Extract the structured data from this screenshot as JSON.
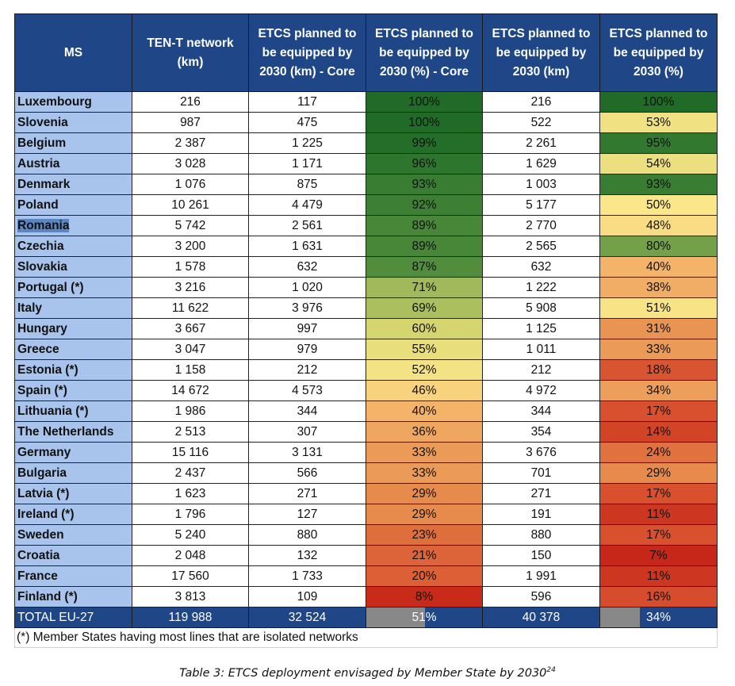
{
  "table": {
    "headers": [
      "MS",
      "TEN-T network (km)",
      "ETCS planned to be equipped by 2030 (km) - Core",
      "ETCS planned to be equipped by 2030 (%) - Core",
      "ETCS planned to be equipped by 2030 (km)",
      "ETCS planned to be equipped by 2030 (%)"
    ],
    "rows": [
      {
        "ms": "Luxembourg",
        "tent": "216",
        "core_km": "117",
        "core_pct": "100%",
        "core_pct_val": 100,
        "total_km": "216",
        "total_pct": "100%",
        "total_pct_val": 100
      },
      {
        "ms": "Slovenia",
        "tent": "987",
        "core_km": "475",
        "core_pct": "100%",
        "core_pct_val": 100,
        "total_km": "522",
        "total_pct": "53%",
        "total_pct_val": 53
      },
      {
        "ms": "Belgium",
        "tent": "2 387",
        "core_km": "1 225",
        "core_pct": "99%",
        "core_pct_val": 99,
        "total_km": "2 261",
        "total_pct": "95%",
        "total_pct_val": 95
      },
      {
        "ms": "Austria",
        "tent": "3 028",
        "core_km": "1 171",
        "core_pct": "96%",
        "core_pct_val": 96,
        "total_km": "1 629",
        "total_pct": "54%",
        "total_pct_val": 54
      },
      {
        "ms": "Denmark",
        "tent": "1 076",
        "core_km": "875",
        "core_pct": "93%",
        "core_pct_val": 93,
        "total_km": "1 003",
        "total_pct": "93%",
        "total_pct_val": 93
      },
      {
        "ms": "Poland",
        "tent": "10 261",
        "core_km": "4 479",
        "core_pct": "92%",
        "core_pct_val": 92,
        "total_km": "5 177",
        "total_pct": "50%",
        "total_pct_val": 50
      },
      {
        "ms": "Romania",
        "tent": "5 742",
        "core_km": "2 561",
        "core_pct": "89%",
        "core_pct_val": 89,
        "total_km": "2 770",
        "total_pct": "48%",
        "total_pct_val": 48,
        "selected": true
      },
      {
        "ms": "Czechia",
        "tent": "3 200",
        "core_km": "1 631",
        "core_pct": "89%",
        "core_pct_val": 89,
        "total_km": "2 565",
        "total_pct": "80%",
        "total_pct_val": 80
      },
      {
        "ms": "Slovakia",
        "tent": "1 578",
        "core_km": "632",
        "core_pct": "87%",
        "core_pct_val": 87,
        "total_km": "632",
        "total_pct": "40%",
        "total_pct_val": 40
      },
      {
        "ms": "Portugal (*)",
        "tent": "3 216",
        "core_km": "1 020",
        "core_pct": "71%",
        "core_pct_val": 71,
        "total_km": "1 222",
        "total_pct": "38%",
        "total_pct_val": 38
      },
      {
        "ms": "Italy",
        "tent": "11 622",
        "core_km": "3 976",
        "core_pct": "69%",
        "core_pct_val": 69,
        "total_km": "5 908",
        "total_pct": "51%",
        "total_pct_val": 51
      },
      {
        "ms": "Hungary",
        "tent": "3 667",
        "core_km": "997",
        "core_pct": "60%",
        "core_pct_val": 60,
        "total_km": "1 125",
        "total_pct": "31%",
        "total_pct_val": 31
      },
      {
        "ms": "Greece",
        "tent": "3 047",
        "core_km": "979",
        "core_pct": "55%",
        "core_pct_val": 55,
        "total_km": "1 011",
        "total_pct": "33%",
        "total_pct_val": 33
      },
      {
        "ms": "Estonia (*)",
        "tent": "1 158",
        "core_km": "212",
        "core_pct": "52%",
        "core_pct_val": 52,
        "total_km": "212",
        "total_pct": "18%",
        "total_pct_val": 18
      },
      {
        "ms": "Spain (*)",
        "tent": "14 672",
        "core_km": "4 573",
        "core_pct": "46%",
        "core_pct_val": 46,
        "total_km": "4 972",
        "total_pct": "34%",
        "total_pct_val": 34
      },
      {
        "ms": "Lithuania (*)",
        "tent": "1 986",
        "core_km": "344",
        "core_pct": "40%",
        "core_pct_val": 40,
        "total_km": "344",
        "total_pct": "17%",
        "total_pct_val": 17
      },
      {
        "ms": "The Netherlands",
        "tent": "2 513",
        "core_km": "307",
        "core_pct": "36%",
        "core_pct_val": 36,
        "total_km": "354",
        "total_pct": "14%",
        "total_pct_val": 14
      },
      {
        "ms": "Germany",
        "tent": "15 116",
        "core_km": "3 131",
        "core_pct": "33%",
        "core_pct_val": 33,
        "total_km": "3 676",
        "total_pct": "24%",
        "total_pct_val": 24
      },
      {
        "ms": "Bulgaria",
        "tent": "2 437",
        "core_km": "566",
        "core_pct": "33%",
        "core_pct_val": 33,
        "total_km": "701",
        "total_pct": "29%",
        "total_pct_val": 29
      },
      {
        "ms": "Latvia (*)",
        "tent": "1 623",
        "core_km": "271",
        "core_pct": "29%",
        "core_pct_val": 29,
        "total_km": "271",
        "total_pct": "17%",
        "total_pct_val": 17
      },
      {
        "ms": "Ireland (*)",
        "tent": "1 796",
        "core_km": "127",
        "core_pct": "29%",
        "core_pct_val": 29,
        "total_km": "191",
        "total_pct": "11%",
        "total_pct_val": 11
      },
      {
        "ms": "Sweden",
        "tent": "5 240",
        "core_km": "880",
        "core_pct": "23%",
        "core_pct_val": 23,
        "total_km": "880",
        "total_pct": "17%",
        "total_pct_val": 17
      },
      {
        "ms": "Croatia",
        "tent": "2 048",
        "core_km": "132",
        "core_pct": "21%",
        "core_pct_val": 21,
        "total_km": "150",
        "total_pct": "7%",
        "total_pct_val": 7
      },
      {
        "ms": "France",
        "tent": "17 560",
        "core_km": "1 733",
        "core_pct": "20%",
        "core_pct_val": 20,
        "total_km": "1 991",
        "total_pct": "11%",
        "total_pct_val": 11
      },
      {
        "ms": "Finland (*)",
        "tent": "3 813",
        "core_km": "109",
        "core_pct": "8%",
        "core_pct_val": 8,
        "total_km": "596",
        "total_pct": "16%",
        "total_pct_val": 16
      }
    ],
    "total": {
      "ms": "TOTAL EU-27",
      "tent": "119 988",
      "core_km": "32 524",
      "core_pct": "51%",
      "core_pct_val": 51,
      "total_km": "40 378",
      "total_pct": "34%",
      "total_pct_val": 34
    },
    "footnote": "(*) Member States having most lines that are isolated networks"
  },
  "colors": {
    "header_bg": "#1f4788",
    "ms_bg": "#a9c4ec",
    "scale": [
      "#c62718",
      "#d9502e",
      "#e8904f",
      "#f3b46a",
      "#fbe48a",
      "#d4d56e",
      "#a7bc5d",
      "#4c8a3a",
      "#1f6b27"
    ]
  },
  "caption": {
    "text": "Table 3: ETCS deployment envisaged by Member State by 2030",
    "sup": "24"
  }
}
